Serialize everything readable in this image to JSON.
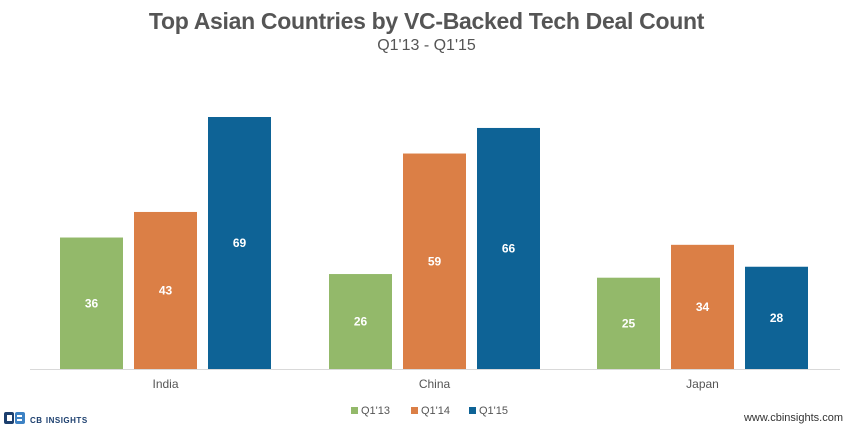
{
  "title": "Top Asian Countries by VC-Backed Tech Deal Count",
  "subtitle": "Q1'13 - Q1'15",
  "logo": {
    "mark": "CB",
    "word": "INSIGHTS"
  },
  "footer_url": "www.cbinsights.com",
  "colors": {
    "Q1'13": "#93b96a",
    "Q1'14": "#db7f46",
    "Q1'15": "#0e6396"
  },
  "chart_data": {
    "type": "bar",
    "title": "Top Asian Countries by VC-Backed Tech Deal Count",
    "subtitle": "Q1'13 - Q1'15",
    "categories": [
      "India",
      "China",
      "Japan"
    ],
    "series": [
      {
        "name": "Q1'13",
        "values": [
          36,
          26,
          25
        ]
      },
      {
        "name": "Q1'14",
        "values": [
          43,
          59,
          34
        ]
      },
      {
        "name": "Q1'15",
        "values": [
          69,
          66,
          28
        ]
      }
    ],
    "ylim": [
      0,
      69
    ],
    "grid": false,
    "legend": "bottom"
  }
}
